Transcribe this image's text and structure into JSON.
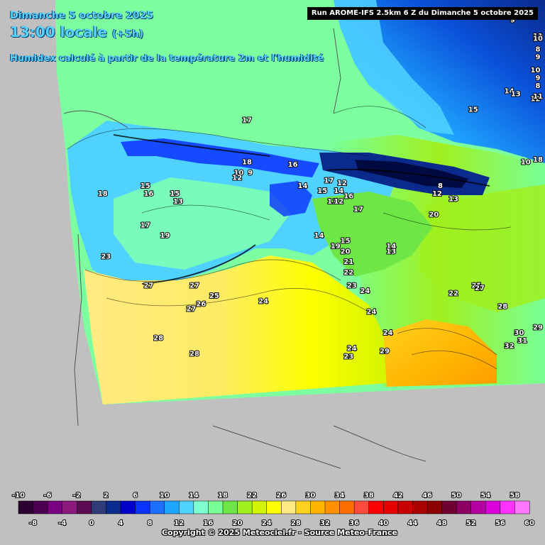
{
  "header": {
    "date": "Dimanche 5 octobre 2025",
    "time": "13:00 locale",
    "offset": "(+5h)",
    "description": "Humidex calculé à partir de la température 2m et l'humidité",
    "run": "Run AROME-IFS 2.5km 6 Z du Dimanche 5 octobre 2025"
  },
  "value_labels": [
    {
      "v": "17",
      "lon": -4.2,
      "lat": 44.35
    },
    {
      "v": "18",
      "lon": -4.2,
      "lat": 43.55
    },
    {
      "v": "16",
      "lon": -2.8,
      "lat": 43.5
    },
    {
      "v": "10",
      "lon": -4.45,
      "lat": 43.35
    },
    {
      "v": "9",
      "lon": -4.1,
      "lat": 43.35
    },
    {
      "v": "12",
      "lon": -4.5,
      "lat": 43.25
    },
    {
      "v": "15",
      "lon": -7.3,
      "lat": 43.1
    },
    {
      "v": "16",
      "lon": -7.2,
      "lat": 42.95
    },
    {
      "v": "18",
      "lon": -8.6,
      "lat": 42.95
    },
    {
      "v": "15",
      "lon": -6.4,
      "lat": 42.95
    },
    {
      "v": "13",
      "lon": -6.3,
      "lat": 42.8
    },
    {
      "v": "14",
      "lon": -2.5,
      "lat": 43.1
    },
    {
      "v": "17",
      "lon": -1.7,
      "lat": 43.2
    },
    {
      "v": "12",
      "lon": -1.3,
      "lat": 43.15
    },
    {
      "v": "15",
      "lon": -1.9,
      "lat": 43.0
    },
    {
      "v": "14",
      "lon": -1.4,
      "lat": 43.0
    },
    {
      "v": "16",
      "lon": -1.1,
      "lat": 42.9
    },
    {
      "v": "11",
      "lon": -1.6,
      "lat": 42.8
    },
    {
      "v": "12",
      "lon": -1.4,
      "lat": 42.8
    },
    {
      "v": "17",
      "lon": -0.8,
      "lat": 42.65
    },
    {
      "v": "20",
      "lon": 1.5,
      "lat": 42.55
    },
    {
      "v": "17",
      "lon": -7.3,
      "lat": 42.35
    },
    {
      "v": "19",
      "lon": -6.7,
      "lat": 42.15
    },
    {
      "v": "14",
      "lon": -2.0,
      "lat": 42.15
    },
    {
      "v": "15",
      "lon": -1.2,
      "lat": 42.05
    },
    {
      "v": "19",
      "lon": -1.5,
      "lat": 41.95
    },
    {
      "v": "20",
      "lon": -1.2,
      "lat": 41.85
    },
    {
      "v": "14",
      "lon": 0.2,
      "lat": 41.95
    },
    {
      "v": "13",
      "lon": 0.2,
      "lat": 41.85
    },
    {
      "v": "23",
      "lon": -8.5,
      "lat": 41.75
    },
    {
      "v": "21",
      "lon": -1.1,
      "lat": 41.65
    },
    {
      "v": "22",
      "lon": -1.1,
      "lat": 41.45
    },
    {
      "v": "27",
      "lon": -7.2,
      "lat": 41.2
    },
    {
      "v": "27",
      "lon": -5.8,
      "lat": 41.2
    },
    {
      "v": "23",
      "lon": -1.0,
      "lat": 41.2
    },
    {
      "v": "24",
      "lon": -0.6,
      "lat": 41.1
    },
    {
      "v": "25",
      "lon": -5.2,
      "lat": 41.0
    },
    {
      "v": "24",
      "lon": -3.7,
      "lat": 40.9
    },
    {
      "v": "26",
      "lon": -5.6,
      "lat": 40.85
    },
    {
      "v": "27",
      "lon": -5.9,
      "lat": 40.75
    },
    {
      "v": "24",
      "lon": -0.4,
      "lat": 40.7
    },
    {
      "v": "22",
      "lon": 2.1,
      "lat": 41.05
    },
    {
      "v": "25",
      "lon": 2.8,
      "lat": 41.2
    },
    {
      "v": "27",
      "lon": 2.9,
      "lat": 41.15
    },
    {
      "v": "28",
      "lon": 3.6,
      "lat": 40.8
    },
    {
      "v": "28",
      "lon": -6.9,
      "lat": 40.2
    },
    {
      "v": "24",
      "lon": 0.1,
      "lat": 40.3
    },
    {
      "v": "28",
      "lon": -5.8,
      "lat": 39.9
    },
    {
      "v": "24",
      "lon": -1.0,
      "lat": 40.0
    },
    {
      "v": "23",
      "lon": -1.1,
      "lat": 39.85
    },
    {
      "v": "29",
      "lon": 0.0,
      "lat": 39.95
    },
    {
      "v": "30",
      "lon": 4.1,
      "lat": 40.3
    },
    {
      "v": "29",
      "lon": 4.7,
      "lat": 40.4
    },
    {
      "v": "31",
      "lon": 4.2,
      "lat": 40.15
    },
    {
      "v": "32",
      "lon": 3.8,
      "lat": 40.05
    },
    {
      "v": "10",
      "lon": 4.3,
      "lat": 43.55
    },
    {
      "v": "14",
      "lon": 3.8,
      "lat": 44.9
    },
    {
      "v": "13",
      "lon": 4.0,
      "lat": 44.85
    },
    {
      "v": "12",
      "lon": 4.6,
      "lat": 44.75
    },
    {
      "v": "11",
      "lon": 5.0,
      "lat": 44.8
    },
    {
      "v": "15",
      "lon": 2.7,
      "lat": 44.55
    },
    {
      "v": "10",
      "lon": 4.6,
      "lat": 45.3
    },
    {
      "v": "9",
      "lon": 4.7,
      "lat": 45.55
    },
    {
      "v": "9",
      "lon": 5.5,
      "lat": 45.15
    },
    {
      "v": "8",
      "lon": 5.9,
      "lat": 45.0
    },
    {
      "v": "10",
      "lon": 5.5,
      "lat": 45.95
    },
    {
      "v": "11",
      "lon": 5.8,
      "lat": 45.95
    },
    {
      "v": "10",
      "lon": 6.4,
      "lat": 45.9
    },
    {
      "v": "8",
      "lon": 5.4,
      "lat": 45.7
    },
    {
      "v": "9",
      "lon": 3.9,
      "lat": 46.25
    },
    {
      "v": "18",
      "lon": 6.2,
      "lat": 43.6
    },
    {
      "v": "12",
      "lon": 1.6,
      "lat": 42.95
    },
    {
      "v": "8",
      "lon": 1.7,
      "lat": 43.1
    },
    {
      "v": "13",
      "lon": 2.1,
      "lat": 42.85
    }
  ],
  "legend": {
    "top_labels": [
      "-10",
      "-6",
      "-2",
      "2",
      "6",
      "10",
      "14",
      "18",
      "22",
      "26",
      "30",
      "34",
      "38",
      "42",
      "46",
      "50",
      "54",
      "58"
    ],
    "bottom_labels": [
      "-8",
      "-4",
      "0",
      "4",
      "8",
      "12",
      "16",
      "20",
      "24",
      "28",
      "32",
      "36",
      "40",
      "44",
      "48",
      "52",
      "56",
      "60"
    ],
    "colors": [
      "#2c0030",
      "#4d004f",
      "#7a0082",
      "#8b1a7c",
      "#5c0a52",
      "#303c78",
      "#0a2a8c",
      "#0000c8",
      "#0a32ff",
      "#1e6eff",
      "#1ea5ff",
      "#50d2ff",
      "#7dffd0",
      "#78ff96",
      "#6ee646",
      "#a0f01e",
      "#d2f500",
      "#ffff00",
      "#ffeb82",
      "#ffd21e",
      "#ffb400",
      "#ff9100",
      "#ff6e00",
      "#ff4b3c",
      "#ff0000",
      "#e60000",
      "#c80000",
      "#aa0000",
      "#8c0000",
      "#6e0032",
      "#8c0064",
      "#b400a0",
      "#dc00dc",
      "#ff32ff",
      "#ff78ff"
    ]
  },
  "copyright": "Copyright © 2025 Meteociel.fr - Source Meteo-France"
}
